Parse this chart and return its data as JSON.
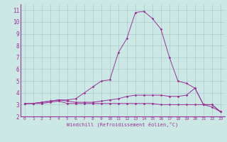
{
  "xlabel": "Windchill (Refroidissement éolien,°C)",
  "x": [
    0,
    1,
    2,
    3,
    4,
    5,
    6,
    7,
    8,
    9,
    10,
    11,
    12,
    13,
    14,
    15,
    16,
    17,
    18,
    19,
    20,
    21,
    22,
    23
  ],
  "line1": [
    3.1,
    3.1,
    3.1,
    3.2,
    3.3,
    3.1,
    3.1,
    3.1,
    3.1,
    3.1,
    3.1,
    3.1,
    3.1,
    3.1,
    3.1,
    3.1,
    3.0,
    3.0,
    3.0,
    3.0,
    3.0,
    3.0,
    2.8,
    2.4
  ],
  "line2": [
    3.1,
    3.1,
    3.2,
    3.3,
    3.4,
    3.3,
    3.2,
    3.2,
    3.2,
    3.3,
    3.4,
    3.5,
    3.7,
    3.8,
    3.8,
    3.8,
    3.8,
    3.7,
    3.7,
    3.8,
    4.4,
    3.0,
    3.0,
    2.4
  ],
  "line3": [
    3.1,
    3.1,
    3.2,
    3.3,
    3.4,
    3.4,
    3.5,
    4.0,
    4.5,
    5.0,
    5.1,
    7.4,
    8.6,
    10.8,
    10.9,
    10.3,
    9.4,
    7.0,
    5.0,
    4.8,
    4.4,
    3.0,
    3.0,
    2.4
  ],
  "ylim": [
    2,
    11.5
  ],
  "xlim": [
    -0.5,
    23.5
  ],
  "yticks": [
    2,
    3,
    4,
    5,
    6,
    7,
    8,
    9,
    10,
    11
  ],
  "xticks": [
    0,
    1,
    2,
    3,
    4,
    5,
    6,
    7,
    8,
    9,
    10,
    11,
    12,
    13,
    14,
    15,
    16,
    17,
    18,
    19,
    20,
    21,
    22,
    23
  ],
  "line_color": "#993399",
  "bg_color": "#cce8e4",
  "grid_color": "#aacccc",
  "axis_color": "#993399",
  "marker": "D",
  "marker_size": 1.8,
  "linewidth": 0.7
}
